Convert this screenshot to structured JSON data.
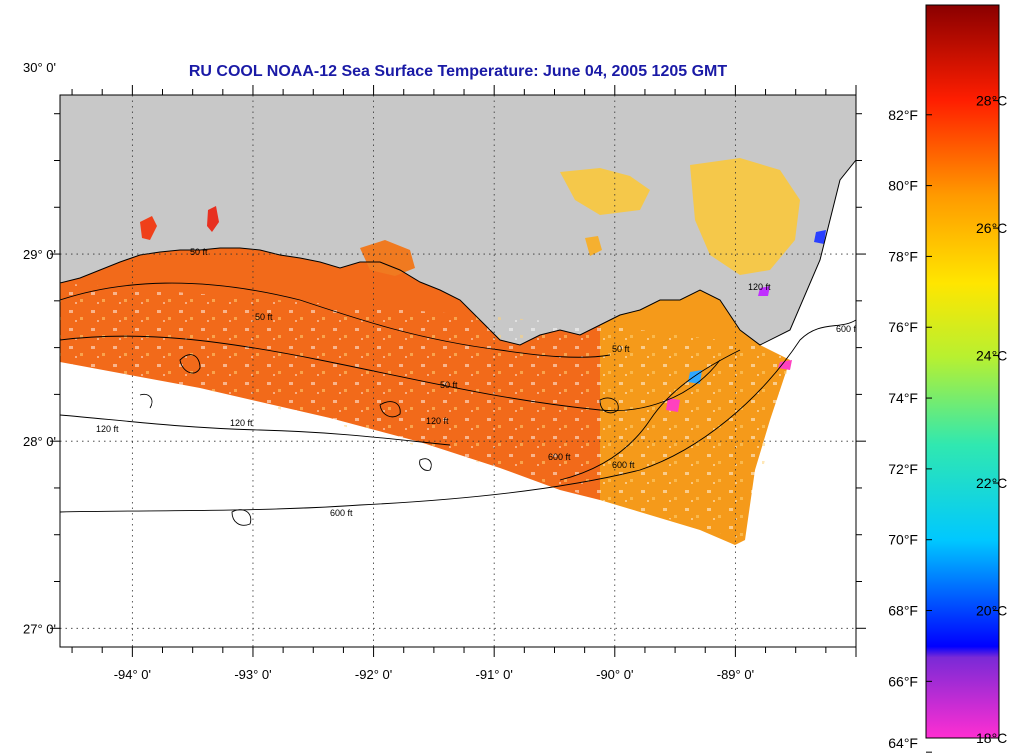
{
  "title": "RU COOL  NOAA-12  Sea Surface Temperature:  June 04, 2005 1205 GMT",
  "map": {
    "lon_range": [
      -94.6,
      -88.0
    ],
    "lat_range": [
      26.9,
      29.85
    ],
    "lon_ticks": [
      {
        "value": -94,
        "label": "-94° 0'"
      },
      {
        "value": -93,
        "label": "-93° 0'"
      },
      {
        "value": -92,
        "label": "-92° 0'"
      },
      {
        "value": -91,
        "label": "-91° 0'"
      },
      {
        "value": -90,
        "label": "-90° 0'"
      },
      {
        "value": -89,
        "label": "-89° 0'"
      }
    ],
    "lat_ticks": [
      {
        "value": 30,
        "label": "30° 0'"
      },
      {
        "value": 29,
        "label": "29° 0'"
      },
      {
        "value": 28,
        "label": "28° 0'"
      },
      {
        "value": 27,
        "label": "27° 0'"
      }
    ],
    "contour_labels": [
      "50 ft",
      "120 ft",
      "600 ft"
    ],
    "colors": {
      "land": "#c8c8c8",
      "no_data": "#ffffff",
      "warm_water": "#f26a1a",
      "mid_water": "#f59a1a",
      "cool_water": "#f5c84a"
    }
  },
  "colorbar": {
    "range_c": [
      18,
      29.5
    ],
    "fahrenheit_labels": [
      "82°F",
      "80°F",
      "78°F",
      "76°F",
      "74°F",
      "72°F",
      "70°F",
      "68°F",
      "66°F",
      "64°F"
    ],
    "celsius_labels": [
      "28°C",
      "26°C",
      "24°C",
      "22°C",
      "20°C",
      "18°C"
    ]
  }
}
